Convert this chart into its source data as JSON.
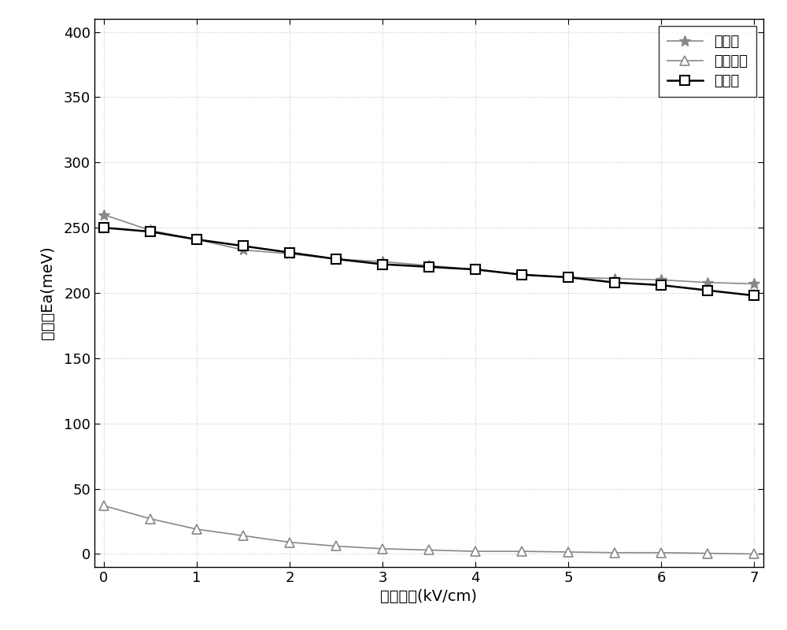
{
  "x": [
    0,
    0.5,
    1,
    1.5,
    2,
    2.5,
    3,
    3.5,
    4,
    4.5,
    5,
    5.5,
    6,
    6.5,
    7
  ],
  "series1_y": [
    260,
    248,
    241,
    233,
    230,
    226,
    224,
    221,
    218,
    214,
    212,
    211,
    210,
    208,
    207
  ],
  "series2_y": [
    37,
    27,
    19,
    14,
    9,
    6,
    4,
    3,
    2,
    2,
    1.5,
    1,
    1,
    0.5,
    0
  ],
  "series3_y": [
    250,
    247,
    241,
    236,
    231,
    226,
    222,
    220,
    218,
    214,
    212,
    208,
    206,
    202,
    198
  ],
  "series1_color": "#888888",
  "series2_color": "#888888",
  "series3_color": "#000000",
  "xlabel": "电场强度(kV/cm)",
  "ylabel": "激发能Ea(meV)",
  "xlim": [
    -0.1,
    7.1
  ],
  "ylim": [
    -10,
    410
  ],
  "yticks": [
    0,
    50,
    100,
    150,
    200,
    250,
    300,
    350,
    400
  ],
  "xticks": [
    0,
    1,
    2,
    3,
    4,
    5,
    6,
    7
  ],
  "legend1": "本发明",
  "legend2": "现有方法",
  "legend3": "报道的",
  "background_color": "#ffffff",
  "grid_color": "#c8c8c8"
}
